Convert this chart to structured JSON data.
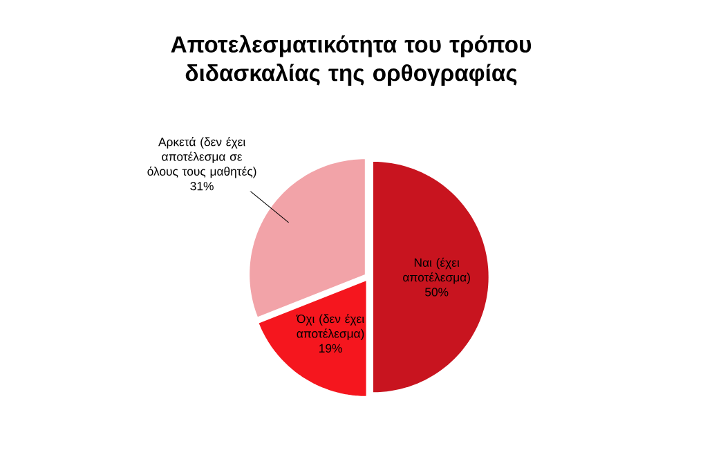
{
  "chart_data": {
    "type": "pie",
    "title": "Αποτελεσματικότητα του τρόπου διδασκαλίας της ορθογραφίας",
    "categories": [
      "Ναι (έχει αποτέλεσμα)",
      "Όχι (δεν έχει αποτέλεσμα)",
      "Αρκετά (δεν έχει αποτέλεσμα σε όλους τους μαθητές)"
    ],
    "values": [
      50,
      19,
      31
    ],
    "colors": [
      "#c8141f",
      "#f5161e",
      "#f2a3a8"
    ],
    "value_labels": [
      "50%",
      "19%",
      "31%"
    ]
  }
}
